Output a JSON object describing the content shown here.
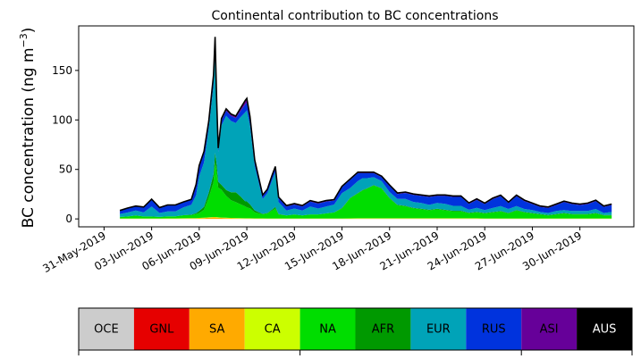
{
  "chart_data": {
    "type": "area",
    "title": "Continental contribution to BC concentrations",
    "ylabel_main": "BC concentration (ng m",
    "ylabel_sup": "−3",
    "ylabel_close": ")",
    "xlabel": "",
    "stacked": true,
    "x_unit": "day",
    "x_start": "2019-06-01",
    "xlim_days": [
      -1.6,
      33.4
    ],
    "ylim": [
      -8,
      195
    ],
    "yticks": [
      0,
      50,
      100,
      150
    ],
    "xticks": [
      {
        "day": 0,
        "label": "31-May-2019"
      },
      {
        "day": 3,
        "label": "03-Jun-2019"
      },
      {
        "day": 6,
        "label": "06-Jun-2019"
      },
      {
        "day": 9,
        "label": "09-Jun-2019"
      },
      {
        "day": 12,
        "label": "12-Jun-2019"
      },
      {
        "day": 15,
        "label": "15-Jun-2019"
      },
      {
        "day": 18,
        "label": "18-Jun-2019"
      },
      {
        "day": 21,
        "label": "21-Jun-2019"
      },
      {
        "day": 24,
        "label": "24-Jun-2019"
      },
      {
        "day": 27,
        "label": "27-Jun-2019"
      },
      {
        "day": 30,
        "label": "30-Jun-2019"
      }
    ],
    "total_line_color": "#000000",
    "legend_position": "bottom",
    "legend": [
      {
        "name": "OCE",
        "color": "#cccccc",
        "text_color": "#000000"
      },
      {
        "name": "GNL",
        "color": "#e60000",
        "text_color": "#000000"
      },
      {
        "name": "SA",
        "color": "#ffaa00",
        "text_color": "#000000"
      },
      {
        "name": "CA",
        "color": "#ccff00",
        "text_color": "#000000"
      },
      {
        "name": "NA",
        "color": "#00dd00",
        "text_color": "#000000"
      },
      {
        "name": "AFR",
        "color": "#009900",
        "text_color": "#000000"
      },
      {
        "name": "EUR",
        "color": "#00a3b8",
        "text_color": "#000000"
      },
      {
        "name": "RUS",
        "color": "#0033dd",
        "text_color": "#000000"
      },
      {
        "name": "ASI",
        "color": "#660099",
        "text_color": "#000000"
      },
      {
        "name": "AUS",
        "color": "#000000",
        "text_color": "#ffffff"
      }
    ],
    "x": [
      1,
      1.5,
      2,
      2.5,
      3,
      3.5,
      4,
      4.5,
      5,
      5.5,
      5.8,
      6,
      6.3,
      6.6,
      6.9,
      7,
      7.1,
      7.2,
      7.4,
      7.7,
      8,
      8.3,
      8.6,
      8.9,
      9,
      9.2,
      9.5,
      10,
      10.3,
      10.6,
      10.8,
      11,
      11.5,
      12,
      12.5,
      13,
      13.5,
      14,
      14.5,
      15,
      15.5,
      16,
      16.3,
      16.6,
      17,
      17.5,
      18,
      18.5,
      19,
      19.5,
      20,
      20.5,
      21,
      21.5,
      22,
      22.5,
      23,
      23.5,
      24,
      24.5,
      25,
      25.5,
      26,
      26.5,
      27,
      27.5,
      28,
      28.5,
      29,
      29.5,
      30,
      30.5,
      31,
      31.5,
      32
    ],
    "series": [
      {
        "name": "OCE",
        "values": [
          0,
          0,
          0,
          0,
          0,
          0,
          0,
          0,
          0,
          0,
          0,
          0,
          0,
          0,
          0,
          0,
          0,
          0,
          0,
          0,
          0,
          0,
          0,
          0,
          0,
          0,
          0,
          0,
          0,
          0,
          0,
          0,
          0,
          0,
          0,
          0,
          0,
          0,
          0,
          0,
          0,
          0,
          0,
          0,
          0,
          0,
          0,
          0,
          0,
          0,
          0,
          0,
          0,
          0,
          0,
          0,
          0,
          0,
          0,
          0,
          0,
          0,
          0,
          0,
          0,
          0,
          0,
          0,
          0,
          0,
          0,
          0,
          0,
          0,
          0
        ]
      },
      {
        "name": "GNL",
        "values": [
          0,
          0,
          0,
          0,
          0,
          0,
          0,
          0,
          0,
          0,
          0,
          0,
          0,
          0,
          0,
          0,
          0,
          0,
          0,
          0,
          0,
          0,
          0,
          0,
          0,
          0,
          0,
          0,
          0,
          0,
          0,
          0,
          0,
          0,
          0,
          0,
          0,
          0,
          0,
          0,
          0,
          0,
          0,
          0,
          0,
          0,
          0,
          0,
          0,
          0,
          0,
          0,
          0,
          0,
          0,
          0,
          0,
          0,
          0,
          0,
          0,
          0,
          0,
          0,
          0,
          0,
          0,
          0,
          0,
          0,
          0,
          0,
          0,
          0,
          0
        ]
      },
      {
        "name": "SA",
        "values": [
          0.2,
          0.2,
          0.2,
          0.2,
          0.2,
          0.2,
          0.3,
          0.3,
          0.4,
          0.5,
          0.5,
          0.6,
          0.8,
          1.2,
          1.5,
          1.5,
          1.4,
          1.2,
          1.0,
          0.8,
          0.6,
          0.5,
          0.4,
          0.3,
          0.3,
          0.3,
          0.3,
          0.3,
          0.2,
          0.2,
          0.2,
          0.2,
          0.2,
          0.2,
          0.2,
          0.2,
          0.2,
          0.2,
          0.2,
          0.2,
          0.2,
          0.3,
          0.3,
          0.3,
          0.3,
          0.3,
          0.3,
          0.3,
          0.3,
          0.3,
          0.3,
          0.3,
          0.3,
          0.3,
          0.3,
          0.3,
          0.3,
          0.3,
          0.2,
          0.2,
          0.2,
          0.2,
          0.2,
          0.2,
          0.2,
          0.2,
          0.2,
          0.2,
          0.2,
          0.2,
          0.2,
          0.2,
          0.2,
          0.2,
          0.2
        ]
      },
      {
        "name": "CA",
        "values": [
          0.3,
          0.3,
          0.3,
          0.3,
          0.3,
          0.3,
          0.3,
          0.3,
          0.3,
          0.3,
          0.3,
          0.4,
          0.4,
          0.4,
          0.4,
          0.4,
          0.4,
          0.4,
          0.4,
          0.4,
          0.4,
          0.4,
          0.4,
          0.4,
          0.4,
          0.4,
          0.3,
          0.3,
          0.3,
          0.3,
          0.3,
          0.3,
          0.3,
          0.3,
          0.3,
          0.3,
          0.3,
          0.3,
          0.3,
          0.3,
          0.4,
          0.4,
          0.4,
          0.4,
          0.4,
          0.4,
          0.4,
          0.4,
          0.4,
          0.4,
          0.4,
          0.4,
          0.4,
          0.4,
          0.4,
          0.4,
          0.4,
          0.4,
          0.3,
          0.3,
          0.3,
          0.3,
          0.3,
          0.3,
          0.3,
          0.3,
          0.3,
          0.3,
          0.3,
          0.3,
          0.3,
          0.3,
          0.3,
          0.3,
          0.3
        ]
      },
      {
        "name": "NA",
        "values": [
          1.5,
          2,
          3,
          2,
          2,
          1.5,
          2,
          2,
          3,
          3,
          4,
          5,
          8,
          20,
          35,
          55,
          45,
          30,
          28,
          22,
          18,
          16,
          14,
          12,
          11,
          10,
          6,
          4,
          5,
          8,
          10,
          4,
          3,
          4,
          3,
          4,
          4,
          5,
          6,
          10,
          20,
          25,
          28,
          30,
          33,
          30,
          20,
          13,
          12,
          10,
          9,
          8,
          9,
          8,
          7,
          7,
          5,
          6,
          5,
          6,
          7,
          5,
          8,
          6,
          5,
          4,
          3,
          4,
          5,
          4,
          4,
          4,
          5,
          3,
          3
        ]
      },
      {
        "name": "AFR",
        "values": [
          0,
          0,
          0,
          0,
          0,
          0,
          0,
          0,
          0,
          0.5,
          1,
          2,
          3,
          5,
          8,
          10,
          8,
          6,
          5,
          6,
          8,
          10,
          8,
          5,
          6,
          4,
          2,
          0.5,
          0.5,
          1,
          1.5,
          0.5,
          0,
          0,
          0,
          0,
          0,
          0,
          0,
          0.5,
          0.5,
          0.5,
          0.5,
          0.5,
          0.5,
          0.5,
          0.5,
          0.5,
          0.5,
          0.5,
          0.5,
          0.5,
          0.5,
          0.5,
          0.5,
          0.5,
          0.5,
          0.5,
          0.5,
          0.5,
          0.5,
          0.5,
          0.5,
          0.5,
          0.5,
          0.5,
          0.5,
          0.5,
          0.5,
          0.5,
          0.5,
          0.5,
          0.5,
          0.5,
          0.5
        ]
      },
      {
        "name": "EUR",
        "values": [
          3,
          4,
          5,
          4,
          10,
          4,
          5,
          5,
          8,
          10,
          18,
          35,
          45,
          65,
          90,
          110,
          60,
          30,
          60,
          75,
          72,
          70,
          80,
          90,
          92,
          80,
          45,
          15,
          20,
          30,
          35,
          12,
          5,
          6,
          5,
          8,
          6,
          7,
          8,
          15,
          10,
          12,
          12,
          10,
          8,
          7,
          6,
          6,
          7,
          6,
          6,
          5,
          6,
          6,
          5,
          5,
          3,
          4,
          3,
          4,
          5,
          4,
          4,
          3,
          3,
          2,
          2,
          3,
          3,
          3,
          3,
          3,
          4,
          2,
          3
        ]
      },
      {
        "name": "RUS",
        "values": [
          3,
          4,
          4,
          5,
          7,
          5,
          6,
          6,
          5,
          5,
          10,
          10,
          10,
          6,
          8,
          5,
          3,
          3,
          5,
          5,
          5,
          5,
          6,
          8,
          8,
          6,
          4,
          3,
          3,
          4,
          5,
          4,
          4,
          4,
          4,
          5,
          5,
          5,
          4,
          6,
          8,
          8,
          5,
          5,
          4,
          4,
          6,
          5,
          6,
          7,
          7,
          8,
          7,
          8,
          9,
          9,
          6,
          8,
          6,
          9,
          10,
          6,
          10,
          8,
          6,
          5,
          5,
          6,
          8,
          7,
          6,
          7,
          8,
          6,
          7
        ]
      },
      {
        "name": "ASI",
        "values": [
          0.5,
          0.5,
          0.5,
          0.5,
          0.5,
          0.5,
          0.5,
          0.5,
          0.5,
          0.5,
          1,
          1,
          1,
          1,
          2,
          2,
          1,
          1,
          2,
          2,
          2,
          2,
          3,
          4,
          4,
          3,
          2,
          1,
          1,
          1,
          1,
          1,
          1,
          1,
          1,
          1,
          1,
          1,
          1,
          1,
          1,
          1,
          1,
          1,
          1,
          1,
          1,
          1,
          1,
          1,
          1,
          1,
          1,
          1,
          1,
          1,
          1,
          1,
          1,
          1,
          1,
          1,
          1,
          1,
          1,
          1,
          1,
          1,
          1,
          1,
          1,
          1,
          1,
          1,
          1
        ]
      },
      {
        "name": "AUS",
        "values": [
          0,
          0,
          0,
          0,
          0,
          0,
          0,
          0,
          0,
          0,
          0,
          0,
          0,
          0,
          0,
          0,
          0,
          0,
          0,
          0,
          0,
          0,
          0,
          0,
          0,
          0,
          0,
          0,
          0,
          0,
          0,
          0,
          0,
          0,
          0,
          0,
          0,
          0,
          0,
          0,
          0,
          0,
          0,
          0,
          0,
          0,
          0,
          0,
          0,
          0,
          0,
          0,
          0,
          0,
          0,
          0,
          0,
          0,
          0,
          0,
          0,
          0,
          0,
          0,
          0,
          0,
          0,
          0,
          0,
          0,
          0,
          0,
          0,
          0,
          0
        ]
      }
    ]
  }
}
